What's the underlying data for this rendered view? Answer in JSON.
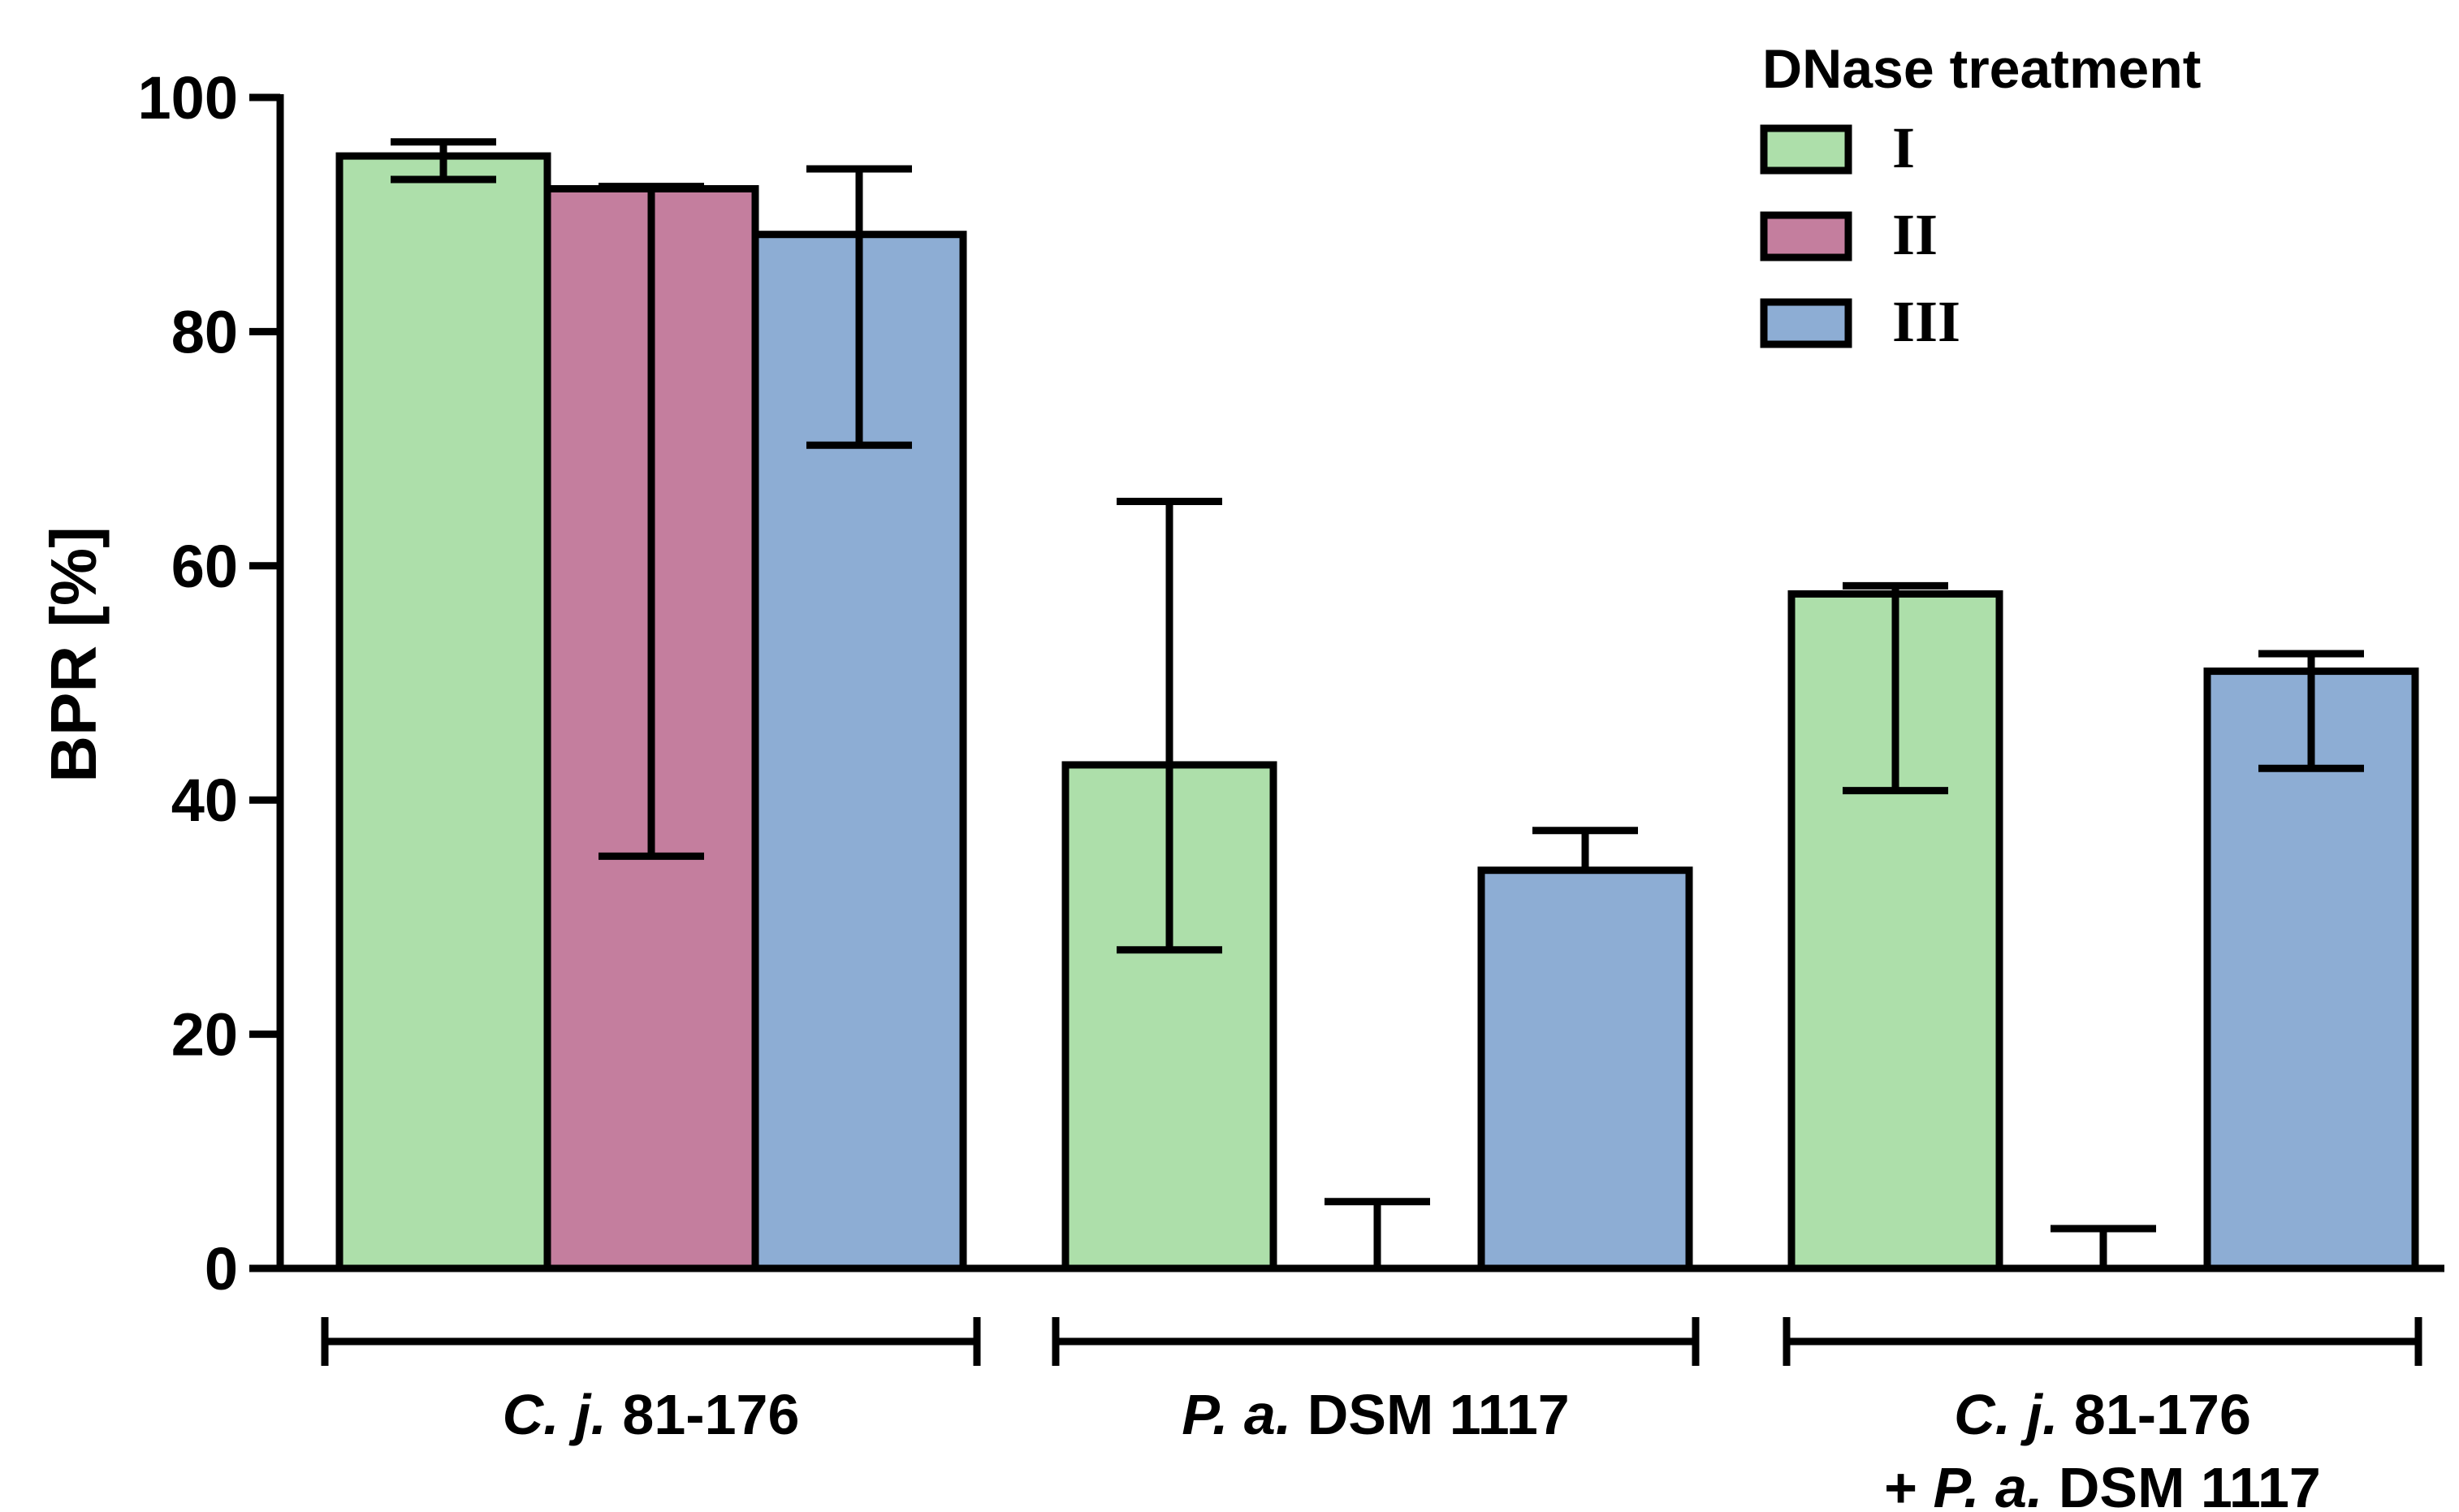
{
  "chart_data": {
    "type": "bar",
    "ylabel": "BPR [%]",
    "ylim": [
      0,
      100
    ],
    "yticks": [
      0,
      20,
      40,
      60,
      80,
      100
    ],
    "grid": false,
    "legend": {
      "title": "DNase treatment",
      "placement": "top-right"
    },
    "categories": [
      {
        "parts": [
          {
            "text": "C. j.",
            "italic": true
          },
          {
            "text": " 81-176",
            "italic": false
          }
        ],
        "lines": 1
      },
      {
        "parts": [
          {
            "text": "P. a.",
            "italic": true
          },
          {
            "text": " DSM 1117",
            "italic": false
          }
        ],
        "lines": 1
      },
      {
        "lines": 2,
        "line1": [
          {
            "text": "C. j.",
            "italic": true
          },
          {
            "text": " 81-176",
            "italic": false
          }
        ],
        "line2": [
          {
            "text": "+ ",
            "italic": false
          },
          {
            "text": "P. a.",
            "italic": true
          },
          {
            "text": " DSM 1117",
            "italic": false
          }
        ]
      }
    ],
    "series": [
      {
        "name": "I",
        "color": "#ADDFAA",
        "values": [
          95.0,
          43.0,
          57.6
        ],
        "err_low": [
          93.0,
          27.2,
          40.8
        ],
        "err_high": [
          96.2,
          65.5,
          58.3
        ]
      },
      {
        "name": "II",
        "color": "#C47E9E",
        "values": [
          92.2,
          0.0,
          0.0
        ],
        "err_low": [
          35.2,
          0.0,
          0.0
        ],
        "err_high": [
          92.4,
          5.7,
          3.4
        ]
      },
      {
        "name": "III",
        "color": "#8DADD4",
        "values": [
          88.3,
          34.0,
          51.0
        ],
        "err_low": [
          70.3,
          34.0,
          42.7
        ],
        "err_high": [
          93.9,
          37.4,
          52.5
        ]
      }
    ]
  }
}
